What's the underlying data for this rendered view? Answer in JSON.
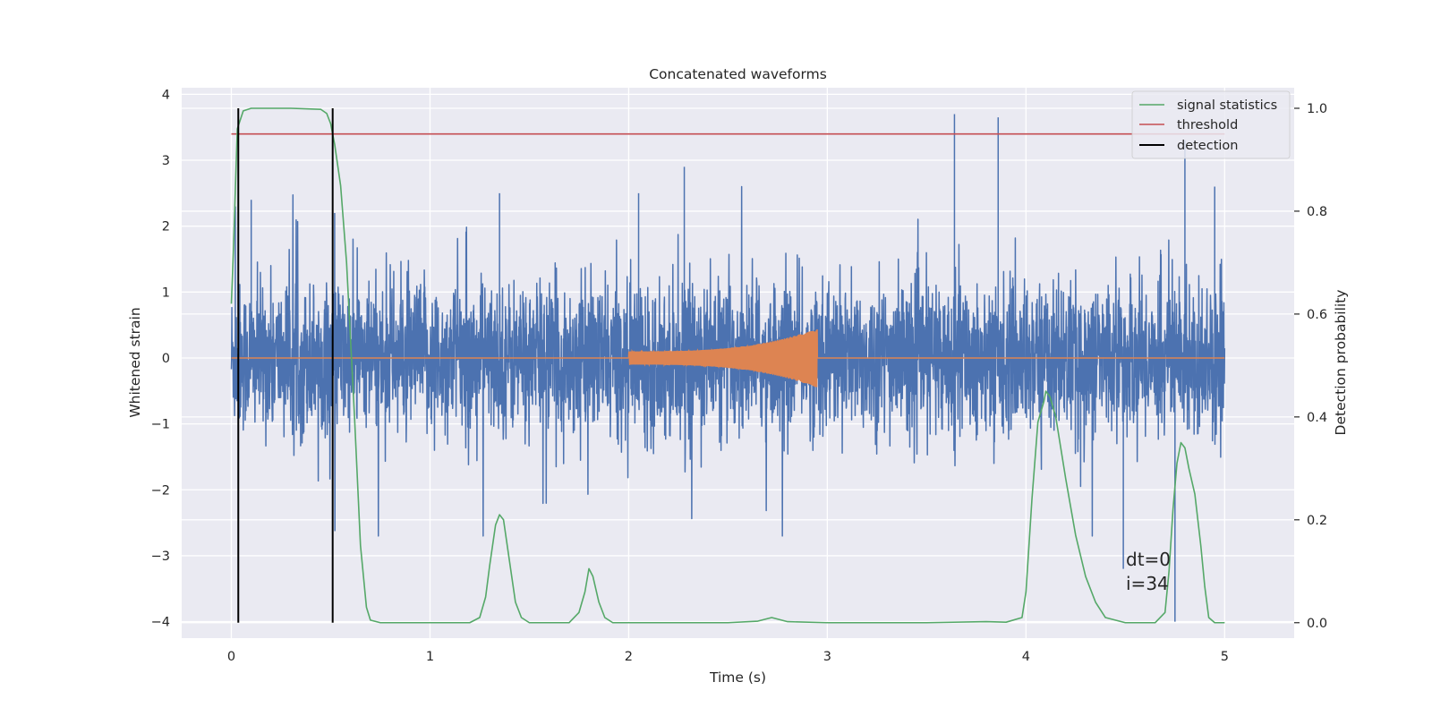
{
  "chart_data": {
    "type": "line",
    "title": "Concatenated waveforms",
    "xlabel": "Time (s)",
    "ylabel": "Whitened strain",
    "y2label": "Detection probability",
    "xlim": [
      -0.25,
      5.35
    ],
    "ylim": [
      -4.25,
      4.1
    ],
    "y2lim": [
      -0.03,
      1.04
    ],
    "xticks": [
      0,
      1,
      2,
      3,
      4,
      5
    ],
    "yticks": [
      -4,
      -3,
      -2,
      -1,
      0,
      1,
      2,
      3,
      4
    ],
    "y2ticks": [
      0.0,
      0.2,
      0.4,
      0.6,
      0.8,
      1.0
    ],
    "xtick_labels": [
      "0",
      "1",
      "2",
      "3",
      "4",
      "5"
    ],
    "ytick_labels": [
      "−4",
      "−3",
      "−2",
      "−1",
      "0",
      "1",
      "2",
      "3",
      "4"
    ],
    "y2tick_labels": [
      "0.0",
      "0.2",
      "0.4",
      "0.6",
      "0.8",
      "1.0"
    ],
    "grid": true,
    "legend_position": "top-right",
    "series": [
      {
        "axis": "left",
        "color": "#4c72b0",
        "x_range": [
          0,
          5
        ],
        "amplitude_envelope": 0.8,
        "peaks": [
          [
            0.02,
            2.3
          ],
          [
            0.1,
            2.4
          ],
          [
            0.52,
            2.2
          ],
          [
            1.35,
            2.5
          ],
          [
            2.05,
            2.5
          ],
          [
            2.28,
            2.9
          ],
          [
            3.64,
            3.7
          ],
          [
            3.86,
            3.65
          ],
          [
            4.49,
            -3.2
          ],
          [
            4.75,
            -4.0
          ],
          [
            4.8,
            3.3
          ],
          [
            4.95,
            2.6
          ]
        ]
      },
      {
        "axis": "left",
        "color": "#dd8452",
        "x_range": [
          0,
          5
        ],
        "chirp_start": 2.0,
        "chirp_end": 2.95,
        "chirp_start_amplitude": 0.1,
        "chirp_peak_amplitude": 0.45
      },
      {
        "name": "signal statistics",
        "axis": "right",
        "color": "#55a868",
        "x": [
          0,
          0.01,
          0.03,
          0.06,
          0.1,
          0.2,
          0.3,
          0.45,
          0.48,
          0.5,
          0.52,
          0.55,
          0.58,
          0.62,
          0.65,
          0.68,
          0.7,
          0.75,
          0.8,
          1.0,
          1.2,
          1.25,
          1.28,
          1.3,
          1.33,
          1.35,
          1.37,
          1.4,
          1.43,
          1.46,
          1.5,
          1.55,
          1.7,
          1.75,
          1.78,
          1.8,
          1.82,
          1.85,
          1.88,
          1.92,
          2.0,
          2.5,
          2.65,
          2.72,
          2.8,
          3.0,
          3.5,
          3.8,
          3.9,
          3.98,
          4.0,
          4.03,
          4.06,
          4.09,
          4.1,
          4.12,
          4.15,
          4.2,
          4.25,
          4.3,
          4.35,
          4.4,
          4.5,
          4.65,
          4.7,
          4.72,
          4.74,
          4.76,
          4.78,
          4.8,
          4.82,
          4.85,
          4.88,
          4.9,
          4.92,
          4.95,
          5.0
        ],
        "values": [
          0.62,
          0.72,
          0.96,
          0.995,
          1.0,
          1.0,
          1.0,
          0.998,
          0.99,
          0.97,
          0.93,
          0.85,
          0.7,
          0.4,
          0.15,
          0.03,
          0.005,
          0.0,
          0.0,
          0.0,
          0.0,
          0.01,
          0.05,
          0.11,
          0.19,
          0.21,
          0.2,
          0.12,
          0.04,
          0.01,
          0.0,
          0.0,
          0.0,
          0.02,
          0.06,
          0.105,
          0.09,
          0.04,
          0.01,
          0.0,
          0.0,
          0.0,
          0.003,
          0.01,
          0.002,
          0.0,
          0.0,
          0.002,
          0.001,
          0.01,
          0.06,
          0.24,
          0.39,
          0.43,
          0.45,
          0.44,
          0.4,
          0.28,
          0.17,
          0.09,
          0.04,
          0.01,
          0.0,
          0.0,
          0.02,
          0.1,
          0.22,
          0.31,
          0.35,
          0.34,
          0.3,
          0.25,
          0.15,
          0.07,
          0.01,
          0.0,
          0.0
        ]
      },
      {
        "name": "threshold",
        "axis": "right",
        "color": "#c44e52",
        "x": [
          0,
          5
        ],
        "values": [
          0.95,
          0.95
        ]
      },
      {
        "name": "detection",
        "axis": "right",
        "color": "#000000",
        "type": "vlines",
        "x": [
          0.035,
          0.51
        ],
        "range": [
          0.0,
          1.0
        ]
      }
    ],
    "annotations": [
      "dt=0",
      "i=34"
    ],
    "colors": {
      "axes_background": "#eaeaf2",
      "grid": "#ffffff",
      "text": "#262626"
    }
  }
}
